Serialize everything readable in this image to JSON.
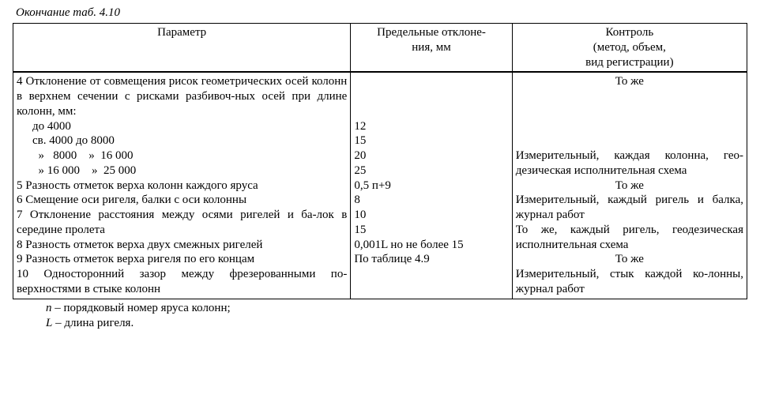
{
  "caption": "Окончание таб.  4.10",
  "headers": {
    "param": "Параметр",
    "dev": "Предельные отклоне-\nния, мм",
    "ctrl": "Контроль\n(метод, объем,\nвид регистрации)"
  },
  "rows": [
    {
      "param_lines": [
        {
          "text": "4 Отклонение от совмещения рисок геометрических осей колонн в верхнем сечении с рисками разбивоч-ных осей при длине колонн, мм:",
          "cls": "param-line"
        },
        {
          "text": "до  4000",
          "cls": "sub"
        },
        {
          "text": "св. 4000  до   8000",
          "cls": "sub"
        },
        {
          "text": "  »   8000    »  16 000",
          "cls": "sub ws"
        },
        {
          "text": "  » 16 000    »  25 000",
          "cls": "sub ws"
        }
      ],
      "dev_lines": [
        "",
        "",
        "",
        "12",
        "15",
        "20",
        "25"
      ],
      "ctrl_html": "То же",
      "ctrl_cls": "ctrl-center"
    },
    {
      "param_lines": [
        {
          "text": "5  Разность отметок верха колонн каждого яруса",
          "cls": ""
        }
      ],
      "dev_lines": [
        "0,5 п+9"
      ],
      "ctrl_html": "Измерительный, каждая колонна, гео-дезическая исполнительная схема",
      "ctrl_cls": "ctrl-just"
    },
    {
      "param_lines": [
        {
          "text": "6  Смещение оси ригеля, балки с оси колонны",
          "cls": ""
        }
      ],
      "dev_lines": [
        "8"
      ],
      "ctrl_html": "То же",
      "ctrl_cls": "ctrl-center"
    },
    {
      "param_lines": [
        {
          "text": "7 Отклонение расстояния между осями ригелей и ба-лок в середине пролета",
          "cls": "param-line"
        }
      ],
      "dev_lines": [
        "10"
      ],
      "ctrl_html": "Измерительный, каждый ригель и балка, журнал работ",
      "ctrl_cls": "ctrl-just"
    },
    {
      "param_lines": [
        {
          "text": "8  Разность отметок верха двух смежных ригелей",
          "cls": ""
        }
      ],
      "dev_lines": [
        "15"
      ],
      "ctrl_html": "То же, каждый ригель,  геодезическая исполнительная схема",
      "ctrl_cls": "ctrl-just"
    },
    {
      "param_lines": [
        {
          "text": "9  Разность отметок верха ригеля по его концам",
          "cls": ""
        }
      ],
      "dev_lines": [
        "0,001L но не более 15"
      ],
      "ctrl_html": "То же",
      "ctrl_cls": "ctrl-center"
    },
    {
      "param_lines": [
        {
          "text": "10 Односторонний зазор между фрезерованными по-верхностями в стыке колонн",
          "cls": "param-line"
        }
      ],
      "dev_lines": [
        "По таблице 4.9"
      ],
      "ctrl_html": "Измерительный, стык каждой ко-лонны,   журнал работ",
      "ctrl_cls": "ctrl-just"
    }
  ],
  "notes": [
    {
      "sym": "п",
      "text": " – порядковый номер яруса колонн;"
    },
    {
      "sym": "L",
      "text": " – длина ригеля."
    }
  ]
}
